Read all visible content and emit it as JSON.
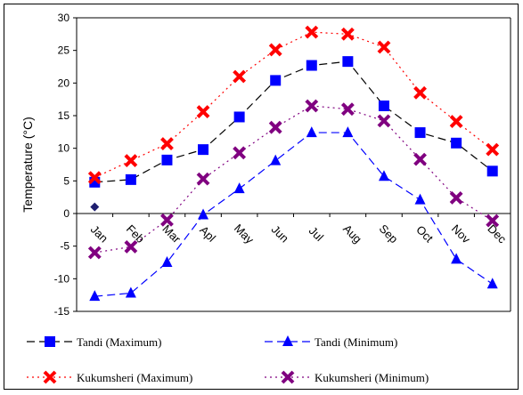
{
  "chart_data": {
    "type": "line",
    "title": "",
    "xlabel": "",
    "ylabel": "Temperature (°C)",
    "ylim": [
      -15,
      30
    ],
    "yticks": [
      -15,
      -10,
      -5,
      0,
      5,
      10,
      15,
      20,
      25,
      30
    ],
    "categories": [
      "Jan",
      "Feb",
      "Mar",
      "Apl",
      "May",
      "Jun",
      "Jul",
      "Aug",
      "Sep",
      "Oct",
      "Nov",
      "Dec"
    ],
    "grid": false,
    "legend_position": "bottom",
    "series": [
      {
        "name": "Tandi (Maximum)",
        "color": "#0000ff",
        "line_color": "#000000",
        "dash": "long-dash",
        "marker": "square",
        "values": [
          4.8,
          5.2,
          8.2,
          9.8,
          14.8,
          20.4,
          22.7,
          23.3,
          16.5,
          12.4,
          10.8,
          6.5
        ]
      },
      {
        "name": "Tandi (Minimum)",
        "color": "#0000ff",
        "line_color": "#0000ff",
        "dash": "long-dash",
        "marker": "triangle",
        "values": [
          -12.7,
          -12.2,
          -7.5,
          -0.2,
          3.8,
          8.1,
          12.4,
          12.4,
          5.7,
          2.1,
          -7.0,
          -10.8
        ]
      },
      {
        "name": "Kukumsheri (Maximum)",
        "color": "#ff0000",
        "line_color": "#ff0000",
        "dash": "dot",
        "marker": "x",
        "values": [
          5.5,
          8.1,
          10.7,
          15.6,
          21.0,
          25.1,
          27.8,
          27.5,
          25.5,
          18.5,
          14.1,
          9.8
        ]
      },
      {
        "name": "Kukumsheri (Minimum)",
        "color": "#800080",
        "line_color": "#800080",
        "dash": "dot",
        "marker": "x",
        "values": [
          -6.0,
          -5.1,
          -1.0,
          5.3,
          9.3,
          13.2,
          16.5,
          16.0,
          14.2,
          8.3,
          2.4,
          -1.1
        ]
      }
    ],
    "extra_points": [
      {
        "x": "Jan",
        "y": 1.0,
        "color": "#1f1f6f",
        "marker": "diamond"
      }
    ]
  }
}
